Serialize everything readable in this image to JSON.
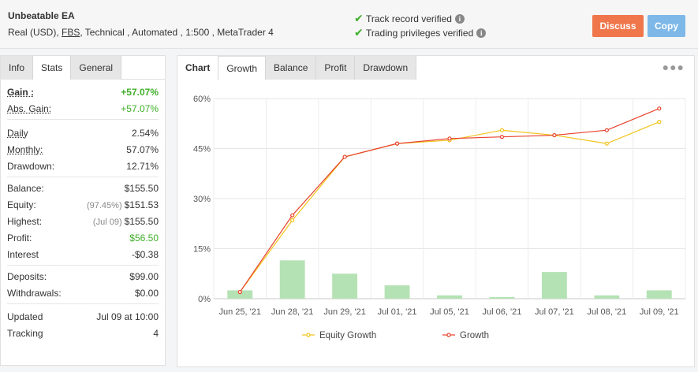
{
  "header": {
    "title": "Unbeatable EA",
    "sub_prefix": "Real (USD), ",
    "broker": "FBS",
    "sub_suffix": ", Technical , Automated , 1:500 , MetaTrader 4",
    "verify_1": "Track record verified",
    "verify_2": "Trading privileges verified",
    "discuss_label": "Discuss",
    "copy_label": "Copy",
    "accent_discuss": "#f0764b",
    "accent_copy": "#7db8e8"
  },
  "left_tabs": [
    "Info",
    "Stats",
    "General"
  ],
  "stats": {
    "gain_label": "Gain :",
    "gain": "+57.07%",
    "abs_gain_label": "Abs. Gain:",
    "abs_gain": "+57.07%",
    "daily_label": "Daily",
    "daily": "2.54%",
    "monthly_label": "Monthly:",
    "monthly": "57.07%",
    "drawdown_label": "Drawdown:",
    "drawdown": "12.71%",
    "balance_label": "Balance:",
    "balance": "$155.50",
    "equity_label": "Equity:",
    "equity_pct": "(97.45%)",
    "equity": "$151.53",
    "highest_label": "Highest:",
    "highest_date": "(Jul 09)",
    "highest": "$155.50",
    "profit_label": "Profit:",
    "profit": "$56.50",
    "interest_label": "Interest",
    "interest": "-$0.38",
    "deposits_label": "Deposits:",
    "deposits": "$99.00",
    "withdrawals_label": "Withdrawals:",
    "withdrawals": "$0.00",
    "updated_label": "Updated",
    "updated": "Jul 09 at 10:00",
    "tracking_label": "Tracking",
    "tracking": "4"
  },
  "right_tabs": [
    "Chart",
    "Growth",
    "Balance",
    "Profit",
    "Drawdown"
  ],
  "chart_data": {
    "type": "line",
    "categories": [
      "Jun 25, '21",
      "Jun 28, '21",
      "Jun 29, '21",
      "Jul 01, '21",
      "Jul 05, '21",
      "Jul 06, '21",
      "Jul 07, '21",
      "Jul 08, '21",
      "Jul 09, '21"
    ],
    "y_ticks": [
      "0%",
      "15%",
      "30%",
      "45%",
      "60%"
    ],
    "ylim": [
      0,
      60
    ],
    "series": [
      {
        "name": "Equity Growth",
        "color": "#f2c31b",
        "values": [
          2,
          23.5,
          42.5,
          46.5,
          47.5,
          50.5,
          49,
          46.5,
          53
        ]
      },
      {
        "name": "Growth",
        "color": "#e8412b",
        "values": [
          2,
          25,
          42.5,
          46.5,
          48,
          48.5,
          49,
          50.5,
          57
        ]
      }
    ],
    "bars": {
      "color": "#b5e2b4",
      "values": [
        2.5,
        11.5,
        7.5,
        4,
        1,
        0.5,
        8,
        1,
        2.5
      ]
    },
    "grid": true,
    "legend_position": "bottom"
  }
}
